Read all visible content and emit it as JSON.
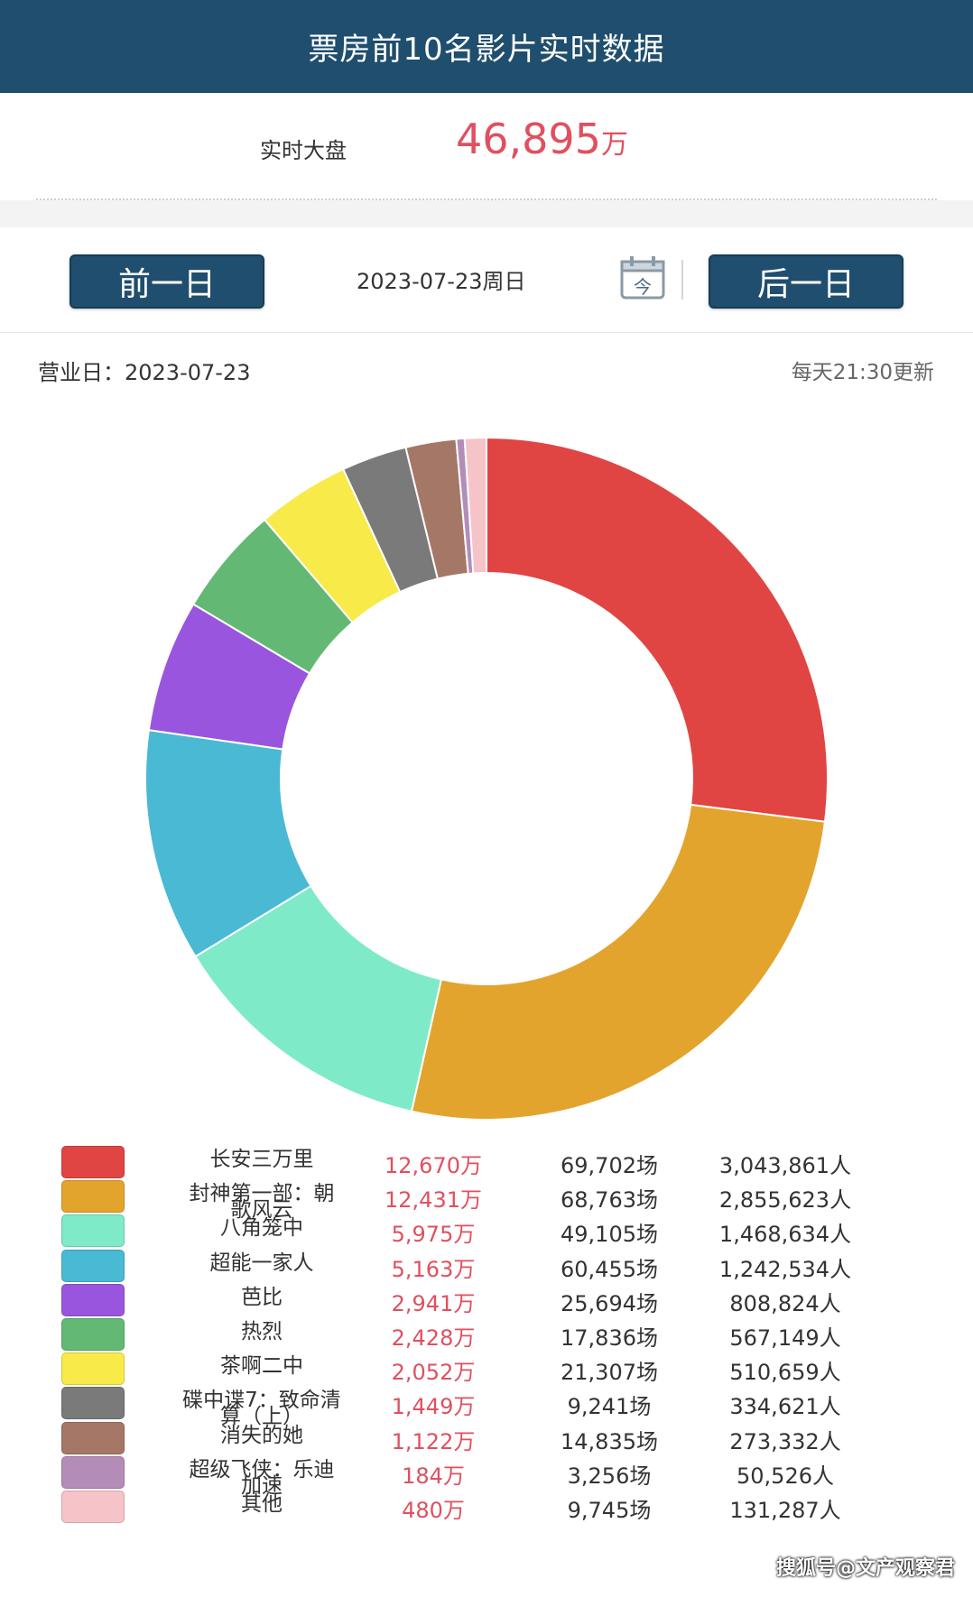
{
  "header": {
    "title": "票房前10名影片实时数据"
  },
  "realtime": {
    "label": "实时大盘",
    "value": "46,895",
    "unit": "万"
  },
  "datebar": {
    "prev_label": "前一日",
    "next_label": "后一日",
    "date": "2023-07-23周日",
    "calendar_glyph": "今"
  },
  "info": {
    "business_day": "营业日：2023-07-23",
    "update_note": "每天21:30更新"
  },
  "chart_data": {
    "type": "pie",
    "donut": true,
    "start": "top",
    "direction": "clockwise",
    "slices": [
      {
        "name": "长安三万里",
        "value": 12670,
        "color": "#e04544"
      },
      {
        "name": "封神第一部：朝歌风云",
        "value": 12431,
        "color": "#e3a42e"
      },
      {
        "name": "八角笼中",
        "value": 5975,
        "color": "#7eeac8"
      },
      {
        "name": "超能一家人",
        "value": 5163,
        "color": "#4ab9d4"
      },
      {
        "name": "芭比",
        "value": 2941,
        "color": "#9a55de"
      },
      {
        "name": "热烈",
        "value": 2428,
        "color": "#63b974"
      },
      {
        "name": "茶啊二中",
        "value": 2052,
        "color": "#f8ea48"
      },
      {
        "name": "碟中谍7：致命清算（上）",
        "value": 1449,
        "color": "#7a7a7a"
      },
      {
        "name": "消失的她",
        "value": 1122,
        "color": "#a57767"
      },
      {
        "name": "超级飞侠：乐迪加速",
        "value": 184,
        "color": "#b38db8"
      },
      {
        "name": "其他",
        "value": 480,
        "color": "#f6c3c9"
      }
    ]
  },
  "legend": {
    "rows": [
      {
        "name_lines": [
          "长安三万里"
        ],
        "box": "12,670万",
        "shows": "69,702场",
        "audience": "3,043,861人",
        "color": "#e04544"
      },
      {
        "name_lines": [
          "封神第一部：朝",
          "歌风云"
        ],
        "box": "12,431万",
        "shows": "68,763场",
        "audience": "2,855,623人",
        "color": "#e3a42e"
      },
      {
        "name_lines": [
          "八角笼中"
        ],
        "box": "5,975万",
        "shows": "49,105场",
        "audience": "1,468,634人",
        "color": "#7eeac8"
      },
      {
        "name_lines": [
          "超能一家人"
        ],
        "box": "5,163万",
        "shows": "60,455场",
        "audience": "1,242,534人",
        "color": "#4ab9d4"
      },
      {
        "name_lines": [
          "芭比"
        ],
        "box": "2,941万",
        "shows": "25,694场",
        "audience": "808,824人",
        "color": "#9a55de"
      },
      {
        "name_lines": [
          "热烈"
        ],
        "box": "2,428万",
        "shows": "17,836场",
        "audience": "567,149人",
        "color": "#63b974"
      },
      {
        "name_lines": [
          "茶啊二中"
        ],
        "box": "2,052万",
        "shows": "21,307场",
        "audience": "510,659人",
        "color": "#f8ea48"
      },
      {
        "name_lines": [
          "碟中谍7：致命清",
          "算（上）"
        ],
        "box": "1,449万",
        "shows": "9,241场",
        "audience": "334,621人",
        "color": "#7a7a7a"
      },
      {
        "name_lines": [
          "消失的她"
        ],
        "box": "1,122万",
        "shows": "14,835场",
        "audience": "273,332人",
        "color": "#a57767"
      },
      {
        "name_lines": [
          "超级飞侠：乐迪",
          "加速"
        ],
        "box": "184万",
        "shows": "3,256场",
        "audience": "50,526人",
        "color": "#b38db8"
      },
      {
        "name_lines": [
          "其他"
        ],
        "box": "480万",
        "shows": "9,745场",
        "audience": "131,287人",
        "color": "#f6c3c9"
      }
    ]
  },
  "watermark": "搜狐号@文产观察君"
}
